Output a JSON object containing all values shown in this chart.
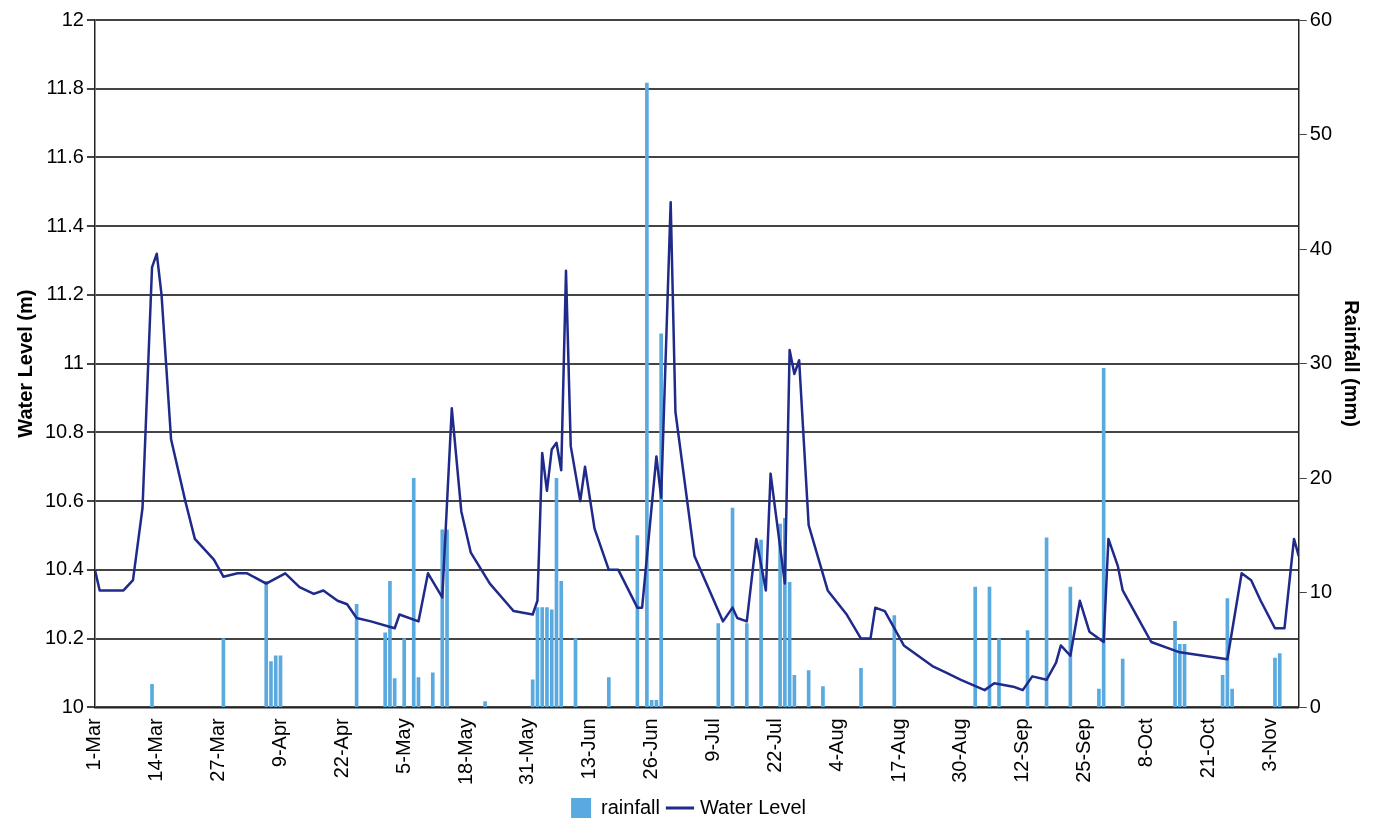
{
  "chart_data": {
    "type": "line",
    "ylabel": "Water Level (m)",
    "y2label": "Rainfall (mm)",
    "xlim": [
      "--03-01",
      "--11-09"
    ],
    "xticks": [
      {
        "value": "--03-01",
        "label": "1-Mar"
      },
      {
        "value": "--03-14",
        "label": "14-Mar"
      },
      {
        "value": "--03-27",
        "label": "27-Mar"
      },
      {
        "value": "--04-09",
        "label": "9-Apr"
      },
      {
        "value": "--04-22",
        "label": "22-Apr"
      },
      {
        "value": "--05-05",
        "label": "5-May"
      },
      {
        "value": "--05-18",
        "label": "18-May"
      },
      {
        "value": "--05-31",
        "label": "31-May"
      },
      {
        "value": "--06-13",
        "label": "13-Jun"
      },
      {
        "value": "--06-26",
        "label": "26-Jun"
      },
      {
        "value": "--07-09",
        "label": "9-Jul"
      },
      {
        "value": "--07-22",
        "label": "22-Jul"
      },
      {
        "value": "--08-04",
        "label": "4-Aug"
      },
      {
        "value": "--08-17",
        "label": "17-Aug"
      },
      {
        "value": "--08-30",
        "label": "30-Aug"
      },
      {
        "value": "--09-12",
        "label": "12-Sep"
      },
      {
        "value": "--09-25",
        "label": "25-Sep"
      },
      {
        "value": "--10-08",
        "label": "8-Oct"
      },
      {
        "value": "--10-21",
        "label": "21-Oct"
      },
      {
        "value": "--11-03",
        "label": "3-Nov"
      }
    ],
    "ylim": [
      10,
      12
    ],
    "yticks": [
      10,
      10.2,
      10.4,
      10.6,
      10.8,
      11,
      11.2,
      11.4,
      11.6,
      11.8,
      12
    ],
    "y2lim": [
      0,
      60
    ],
    "y2ticks": [
      0,
      10,
      20,
      30,
      40,
      50,
      60
    ],
    "grid": "y",
    "legend": "bottom",
    "series": [
      {
        "name": "rainfall",
        "type": "bar",
        "axis": "y2",
        "color": "#5aaae0",
        "x": [
          "--03-13",
          "--03-28",
          "--04-06",
          "--04-07",
          "--04-08",
          "--04-09",
          "--04-25",
          "--05-01",
          "--05-02",
          "--05-03",
          "--05-05",
          "--05-07",
          "--05-08",
          "--05-11",
          "--05-13",
          "--05-14",
          "--05-22",
          "--06-01",
          "--06-02",
          "--06-03",
          "--06-04",
          "--06-05",
          "--06-06",
          "--06-07",
          "--06-10",
          "--06-17",
          "--06-23",
          "--06-25",
          "--06-26",
          "--06-27",
          "--06-28",
          "--07-10",
          "--07-13",
          "--07-16",
          "--07-19",
          "--07-23",
          "--07-24",
          "--07-25",
          "--07-26",
          "--07-29",
          "--08-01",
          "--08-09",
          "--08-16",
          "--09-02",
          "--09-05",
          "--09-07",
          "--09-13",
          "--09-17",
          "--09-22",
          "--09-28",
          "--09-29",
          "--10-03",
          "--10-14",
          "--10-15",
          "--10-16",
          "--10-24",
          "--10-25",
          "--10-26",
          "--11-04",
          "--11-05"
        ],
        "values": [
          2,
          6,
          11,
          4,
          4.5,
          4.5,
          9,
          6.5,
          11,
          2.5,
          6,
          20,
          2.6,
          3,
          15.5,
          15.5,
          0.5,
          2.4,
          8.7,
          8.7,
          8.7,
          8.5,
          20,
          11,
          6,
          2.6,
          15,
          54.5,
          0.6,
          0.6,
          32.6,
          7.3,
          17.4,
          7.3,
          14.6,
          16,
          16.5,
          10.9,
          2.8,
          3.2,
          1.8,
          3.4,
          8,
          10.5,
          10.5,
          6,
          6.7,
          14.8,
          10.5,
          1.6,
          29.6,
          4.2,
          7.5,
          5.5,
          5.5,
          2.8,
          9.5,
          1.6,
          4.3,
          4.7
        ]
      },
      {
        "name": "Water Level",
        "color": "#1f2a8a",
        "marker": "none",
        "line_style": "solid",
        "x": [
          "--03-01",
          "--03-02",
          "--03-05",
          "--03-07",
          "--03-09",
          "--03-11",
          "--03-13",
          "--03-14",
          "--03-15",
          "--03-17",
          "--03-20",
          "--03-22",
          "--03-26",
          "--03-28",
          "--03-31",
          "--04-02",
          "--04-06",
          "--04-10",
          "--04-13",
          "--04-16",
          "--04-18",
          "--04-21",
          "--04-23",
          "--04-25",
          "--04-28",
          "--05-03",
          "--05-04",
          "--05-08",
          "--05-10",
          "--05-13",
          "--05-15",
          "--05-17",
          "--05-19",
          "--05-23",
          "--05-28",
          "--06-01",
          "--06-02",
          "--06-03",
          "--06-04",
          "--06-05",
          "--06-06",
          "--06-07",
          "--06-08",
          "--06-09",
          "--06-11",
          "--06-12",
          "--06-14",
          "--06-17",
          "--06-19",
          "--06-23",
          "--06-24",
          "--06-27",
          "--06-28",
          "--06-30",
          "--07-01",
          "--07-05",
          "--07-11",
          "--07-13",
          "--07-14",
          "--07-16",
          "--07-18",
          "--07-20",
          "--07-21",
          "--07-24",
          "--07-25",
          "--07-26",
          "--07-27",
          "--07-29",
          "--08-02",
          "--08-06",
          "--08-09",
          "--08-11",
          "--08-12",
          "--08-14",
          "--08-18",
          "--08-24",
          "--08-27",
          "--08-30",
          "--09-04",
          "--09-06",
          "--09-10",
          "--09-12",
          "--09-14",
          "--09-17",
          "--09-19",
          "--09-20",
          "--09-22",
          "--09-24",
          "--09-26",
          "--09-29",
          "--09-30",
          "--10-02",
          "--10-03",
          "--10-07",
          "--10-09",
          "--10-15",
          "--10-20",
          "--10-25",
          "--10-28",
          "--10-30",
          "--11-01",
          "--11-04",
          "--11-06",
          "--11-08",
          "--11-09"
        ],
        "values": [
          10.4,
          10.34,
          10.34,
          10.34,
          10.37,
          10.58,
          11.28,
          11.32,
          11.2,
          10.78,
          10.6,
          10.49,
          10.43,
          10.38,
          10.39,
          10.39,
          10.36,
          10.39,
          10.35,
          10.33,
          10.34,
          10.31,
          10.3,
          10.26,
          10.25,
          10.23,
          10.27,
          10.25,
          10.39,
          10.32,
          10.87,
          10.57,
          10.45,
          10.36,
          10.28,
          10.27,
          10.31,
          10.74,
          10.63,
          10.75,
          10.77,
          10.69,
          11.27,
          10.76,
          10.6,
          10.7,
          10.52,
          10.4,
          10.4,
          10.29,
          10.29,
          10.73,
          10.61,
          11.47,
          10.86,
          10.44,
          10.25,
          10.29,
          10.26,
          10.25,
          10.49,
          10.34,
          10.68,
          10.36,
          11.04,
          10.97,
          11.01,
          10.53,
          10.34,
          10.27,
          10.2,
          10.2,
          10.29,
          10.28,
          10.18,
          10.12,
          10.1,
          10.08,
          10.05,
          10.07,
          10.06,
          10.05,
          10.09,
          10.08,
          10.13,
          10.18,
          10.15,
          10.31,
          10.22,
          10.19,
          10.49,
          10.41,
          10.34,
          10.24,
          10.19,
          10.16,
          10.15,
          10.14,
          10.39,
          10.37,
          10.31,
          10.23,
          10.23,
          10.49,
          10.44
        ]
      }
    ]
  }
}
